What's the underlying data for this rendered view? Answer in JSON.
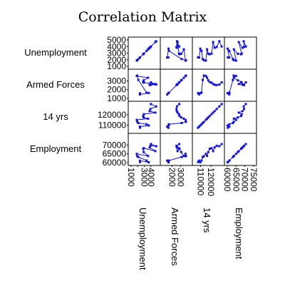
{
  "chart_data": {
    "type": "scatter",
    "title": "Correlation Matrix",
    "color": "#1010e0",
    "variables": [
      "Unemployment",
      "Armed Forces",
      "14 yrs",
      "Employment"
    ],
    "ranges": [
      [
        1000,
        5000
      ],
      [
        1000,
        4000
      ],
      [
        105000,
        130000
      ],
      [
        60000,
        75000
      ]
    ],
    "y_ticks": [
      [
        1000,
        2000,
        3000,
        4000,
        5000
      ],
      [
        1000,
        2000,
        3000
      ],
      [
        110000,
        120000
      ],
      [
        60000,
        65000,
        70000
      ]
    ],
    "x_ticks": [
      [
        1000,
        2000,
        3000,
        4000
      ],
      [
        2000,
        3000
      ],
      [
        110000,
        120000
      ],
      [
        60000,
        65000,
        70000,
        75000
      ]
    ],
    "x_tick_labels": [
      [
        "1000",
        "",
        "3000",
        "4000"
      ],
      [
        "2000",
        "3000"
      ],
      [
        "110000",
        "120000"
      ],
      [
        "60000",
        "65000",
        "70000",
        "75000"
      ]
    ],
    "data": {
      "Unemployment": [
        2356,
        2325,
        3682,
        3351,
        2099,
        1932,
        1870,
        3578,
        2904,
        2822,
        2936,
        4681,
        3813,
        3931,
        4806,
        4007
      ],
      "Armed Forces": [
        1590,
        1456,
        1616,
        1650,
        3099,
        3594,
        3547,
        3350,
        3048,
        2857,
        2798,
        2637,
        2552,
        2514,
        2572,
        2827
      ],
      "14 yrs": [
        107608,
        108632,
        109773,
        110929,
        112075,
        113270,
        115094,
        116219,
        117388,
        118734,
        120445,
        121950,
        123366,
        125368,
        127852,
        130081
      ],
      "Employment": [
        60323,
        61122,
        60171,
        61187,
        63221,
        63639,
        64989,
        63761,
        66019,
        67857,
        68169,
        66513,
        68655,
        69564,
        69331,
        70551
      ]
    }
  }
}
